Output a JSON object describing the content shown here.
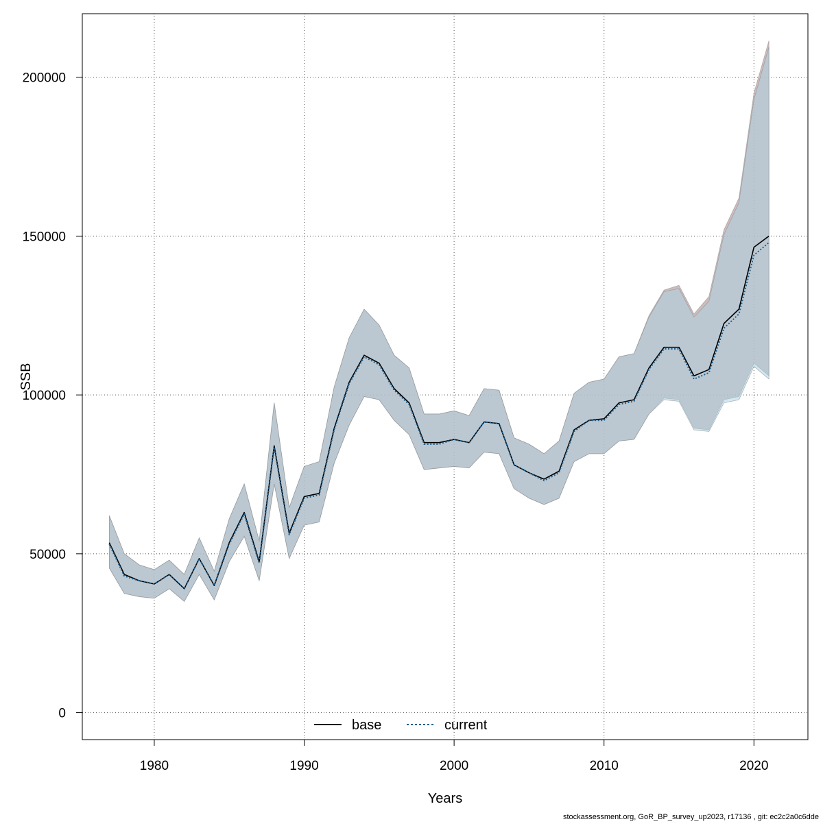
{
  "chart_data": {
    "type": "line",
    "xlabel": "Years",
    "ylabel": "SSB",
    "xlim": [
      1975.2,
      2023.6
    ],
    "ylim": [
      -8500,
      220000
    ],
    "x_ticks": [
      1980,
      1990,
      2000,
      2010,
      2020
    ],
    "x_tick_labels": [
      "1980",
      "1990",
      "2000",
      "2010",
      "2020"
    ],
    "y_ticks": [
      0,
      50000,
      100000,
      150000,
      200000
    ],
    "y_tick_labels": [
      "0",
      "50000",
      "100000",
      "150000",
      "200000"
    ],
    "grid": true,
    "legend_position": "bottom",
    "x": [
      1977,
      1978,
      1979,
      1980,
      1981,
      1982,
      1983,
      1984,
      1985,
      1986,
      1987,
      1988,
      1989,
      1990,
      1991,
      1992,
      1993,
      1994,
      1995,
      1996,
      1997,
      1998,
      1999,
      2000,
      2001,
      2002,
      2003,
      2004,
      2005,
      2006,
      2007,
      2008,
      2009,
      2010,
      2011,
      2012,
      2013,
      2014,
      2015,
      2016,
      2017,
      2018,
      2019,
      2020,
      2021
    ],
    "series": [
      {
        "name": "base",
        "color": "#000000",
        "line_style": "solid",
        "band_color": "#bfa6a6",
        "values": [
          53500,
          43500,
          41500,
          40500,
          43500,
          39000,
          48500,
          40000,
          53500,
          63000,
          47500,
          84000,
          56500,
          68000,
          69000,
          89500,
          104000,
          112500,
          110000,
          102000,
          97500,
          85000,
          85000,
          86000,
          85000,
          91500,
          91000,
          78000,
          75500,
          73500,
          76000,
          89000,
          92000,
          92500,
          97500,
          98500,
          108500,
          115000,
          115000,
          106000,
          108000,
          122500,
          127000,
          146500,
          150000
        ],
        "lower": [
          45500,
          37500,
          36500,
          36000,
          39000,
          35000,
          43500,
          35500,
          47500,
          55500,
          41500,
          72000,
          48500,
          59000,
          60000,
          78500,
          90500,
          99500,
          98500,
          92000,
          87500,
          76500,
          77000,
          77500,
          77000,
          82000,
          81500,
          70500,
          67500,
          65500,
          67500,
          79000,
          81500,
          81500,
          85500,
          86000,
          94000,
          99000,
          98500,
          89500,
          89000,
          98500,
          99500,
          110000,
          106000
        ],
        "upper": [
          62000,
          50000,
          46500,
          45000,
          48000,
          43500,
          55000,
          44500,
          61000,
          72000,
          54000,
          97500,
          64500,
          77500,
          79000,
          102500,
          118000,
          127000,
          122000,
          112500,
          108500,
          94000,
          94000,
          95000,
          93500,
          102000,
          101500,
          86500,
          84500,
          81500,
          85500,
          100500,
          104000,
          105000,
          112000,
          113000,
          125000,
          133000,
          134500,
          125500,
          131000,
          152000,
          162000,
          195000,
          211500
        ]
      },
      {
        "name": "current",
        "color": "#1f5f8f",
        "line_style": "dotted",
        "band_color": "#a8d4e6",
        "values": [
          53000,
          43000,
          41500,
          40500,
          43500,
          39000,
          48500,
          40000,
          53000,
          62500,
          47000,
          83500,
          56000,
          67500,
          68500,
          89000,
          103500,
          112000,
          109500,
          101500,
          97000,
          84500,
          84500,
          86000,
          85000,
          91500,
          91000,
          78000,
          75500,
          73000,
          75500,
          88500,
          92000,
          92000,
          97000,
          98000,
          108000,
          114500,
          114500,
          105000,
          107000,
          121000,
          125500,
          144000,
          148000
        ],
        "lower": [
          45500,
          37500,
          36500,
          36000,
          39000,
          35000,
          43500,
          35500,
          47500,
          55500,
          41500,
          72000,
          48500,
          59000,
          60000,
          78500,
          90500,
          99500,
          98500,
          92000,
          87500,
          76500,
          77000,
          77500,
          77000,
          82000,
          81500,
          70500,
          67500,
          65500,
          67500,
          79000,
          81500,
          81500,
          85500,
          86000,
          94000,
          98500,
          98000,
          89000,
          88500,
          97500,
          98500,
          109000,
          105000
        ],
        "upper": [
          62000,
          50000,
          46500,
          45000,
          48000,
          43500,
          55000,
          44500,
          61000,
          72000,
          54000,
          97500,
          64500,
          77500,
          79000,
          102500,
          118000,
          127000,
          122000,
          112500,
          108500,
          94000,
          94000,
          95000,
          93500,
          102000,
          101500,
          86500,
          84500,
          81500,
          85500,
          100500,
          104000,
          105000,
          112000,
          113000,
          124500,
          132500,
          133500,
          124500,
          129500,
          150500,
          160500,
          193000,
          209500
        ]
      }
    ]
  },
  "footer": {
    "text": "stockassessment.org, GoR_BP_survey_up2023, r17136 , git: ec2c2a0c6dde"
  }
}
